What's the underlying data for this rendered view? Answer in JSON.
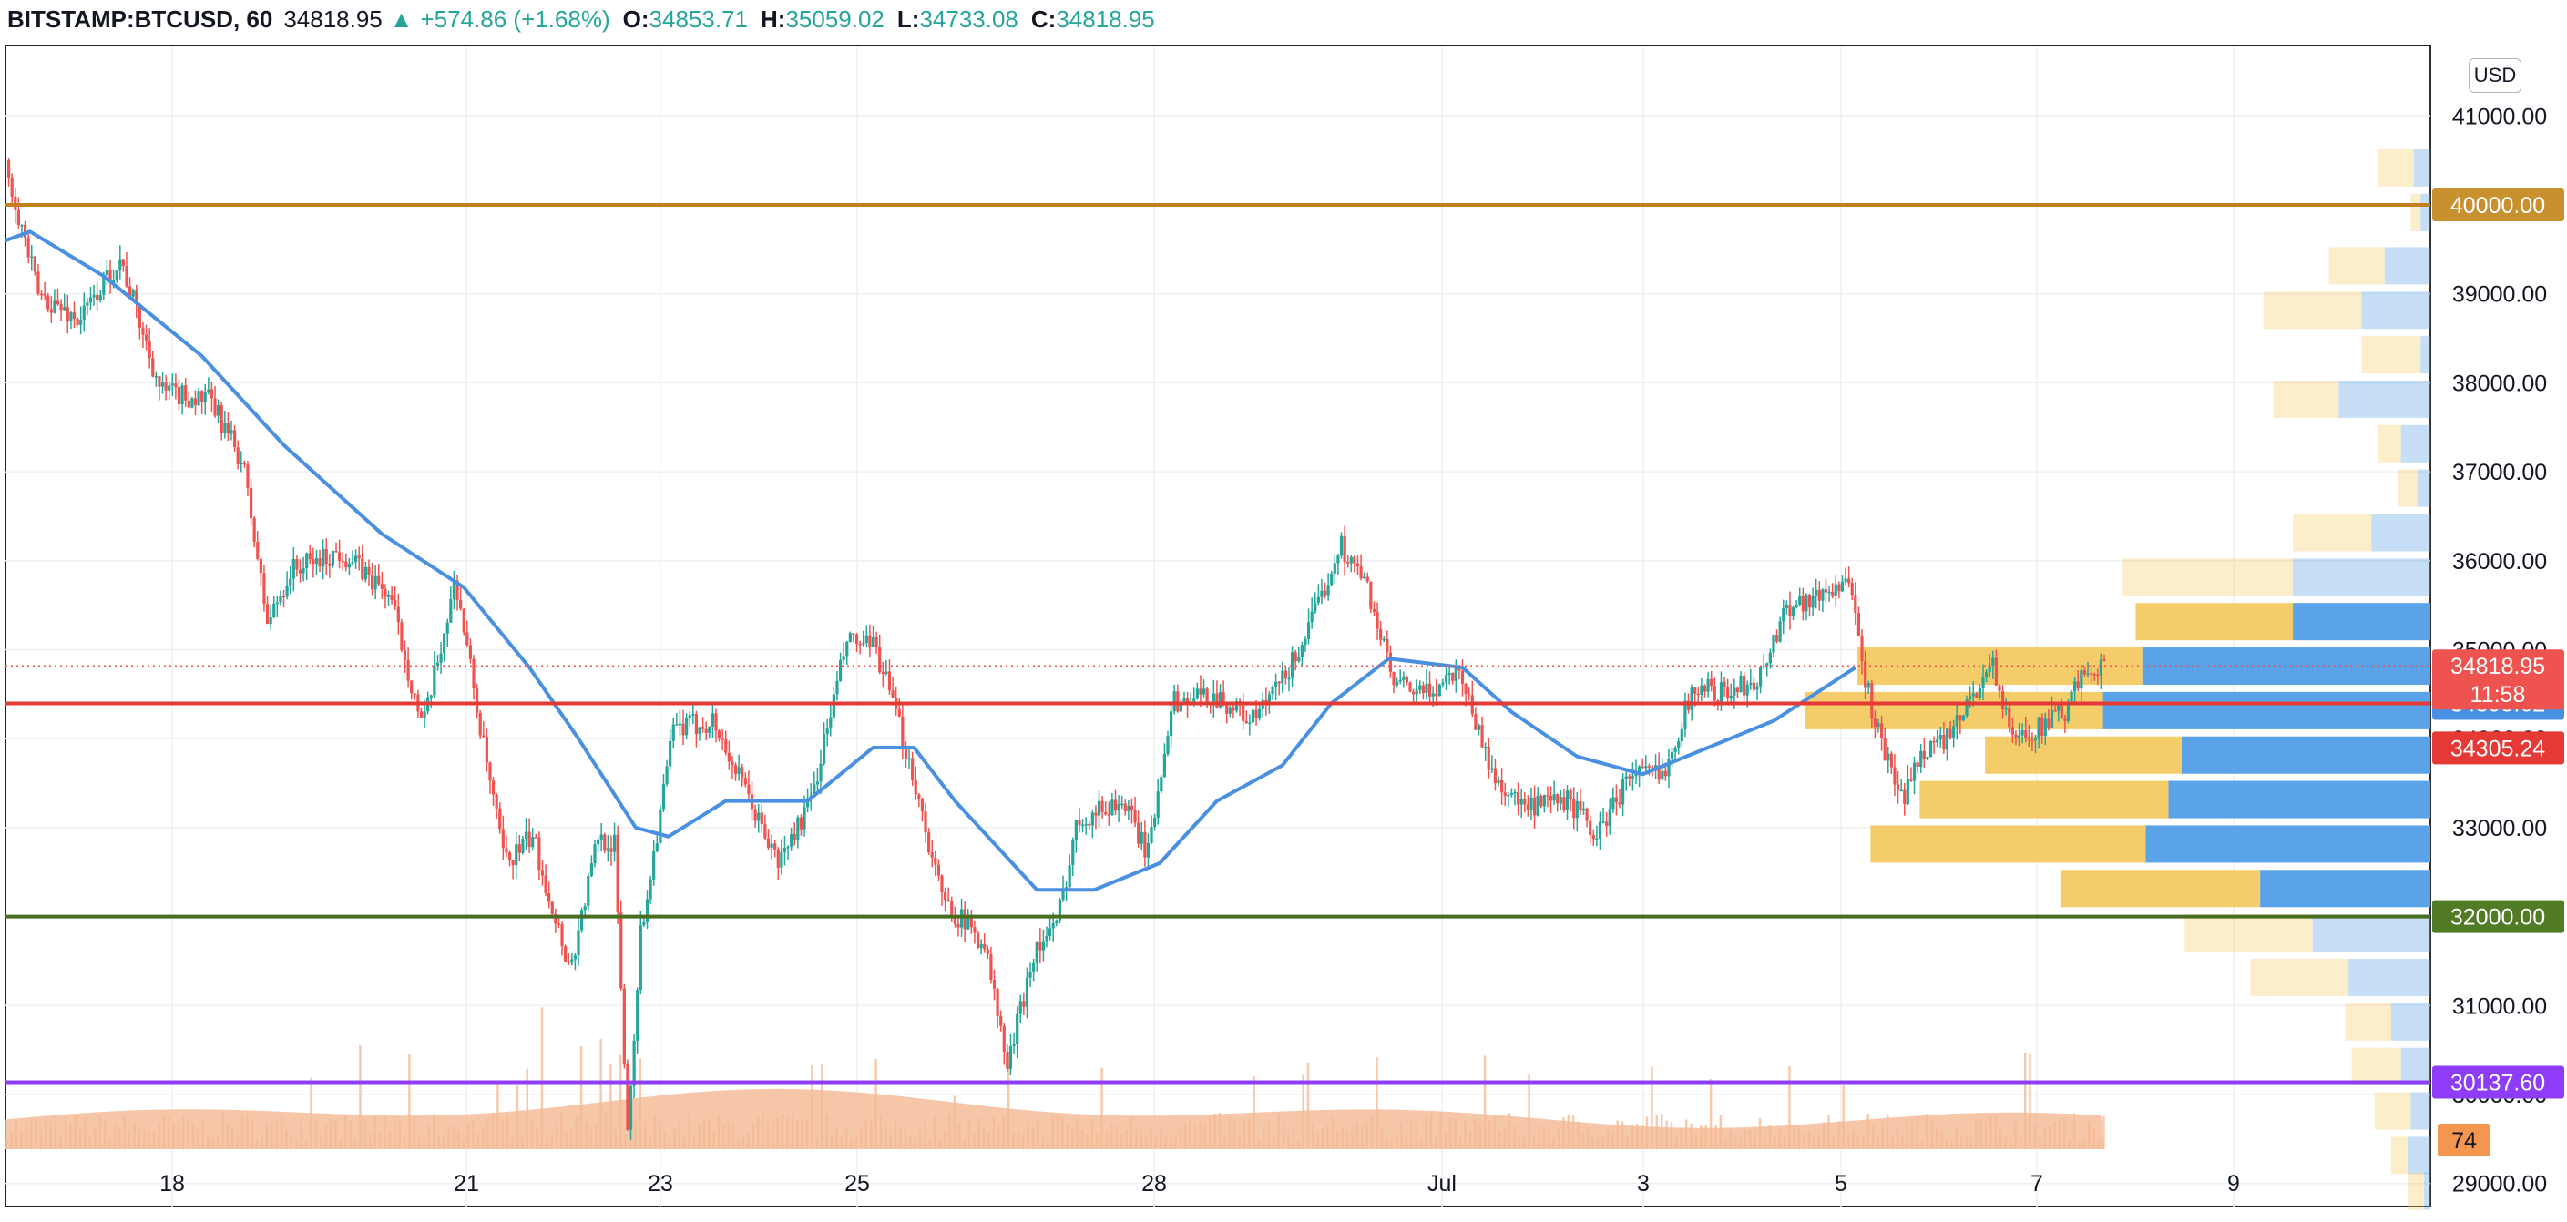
{
  "header": {
    "symbol": "BITSTAMP:BTCUSD, 60",
    "last": "34818.95",
    "change_arrow": "▲",
    "change": "+574.86 (+1.68%)",
    "o_label": "O:",
    "o": "34853.71",
    "h_label": "H:",
    "h": "35059.02",
    "l_label": "L:",
    "l": "34733.08",
    "c_label": "C:",
    "c": "34818.95"
  },
  "currency_button": "USD",
  "chart_data": {
    "type": "candlestick",
    "interval": "60",
    "y_axis": {
      "side": "right",
      "range": [
        28400,
        41900
      ],
      "ticks": [
        29000,
        30000,
        31000,
        32000,
        33000,
        34000,
        35000,
        36000,
        37000,
        38000,
        39000,
        40000,
        41000
      ],
      "tick_labels": [
        "29000.00",
        "30000.00",
        "31000.00",
        "32000.00",
        "33000.00",
        "34000.00",
        "35000.00",
        "36000.00",
        "37000.00",
        "38000.00",
        "39000.00",
        "40000.00",
        "41000.00"
      ]
    },
    "x_axis": {
      "labels": [
        "18",
        "21",
        "23",
        "25",
        "28",
        "Jul",
        "3",
        "5",
        "7",
        "9"
      ]
    },
    "grid": true,
    "price_path_keypoints": [
      [
        0,
        40500
      ],
      [
        20,
        39000
      ],
      [
        45,
        38700
      ],
      [
        70,
        39400
      ],
      [
        95,
        37900
      ],
      [
        125,
        37800
      ],
      [
        145,
        37100
      ],
      [
        160,
        35300
      ],
      [
        175,
        35900
      ],
      [
        205,
        36100
      ],
      [
        235,
        35600
      ],
      [
        255,
        34100
      ],
      [
        275,
        35800
      ],
      [
        292,
        33900
      ],
      [
        305,
        32600
      ],
      [
        322,
        32900
      ],
      [
        345,
        31400
      ],
      [
        362,
        32900
      ],
      [
        372,
        32800
      ],
      [
        380,
        29600
      ],
      [
        388,
        31800
      ],
      [
        408,
        34100
      ],
      [
        432,
        34200
      ],
      [
        452,
        33400
      ],
      [
        472,
        32600
      ],
      [
        492,
        33300
      ],
      [
        514,
        35100
      ],
      [
        532,
        35000
      ],
      [
        553,
        33700
      ],
      [
        572,
        32200
      ],
      [
        598,
        31700
      ],
      [
        612,
        30300
      ],
      [
        628,
        31600
      ],
      [
        642,
        31900
      ],
      [
        655,
        33100
      ],
      [
        682,
        33300
      ],
      [
        698,
        32700
      ],
      [
        712,
        34400
      ],
      [
        738,
        34500
      ],
      [
        762,
        34200
      ],
      [
        782,
        34700
      ],
      [
        800,
        35400
      ],
      [
        815,
        36200
      ],
      [
        832,
        35700
      ],
      [
        848,
        34600
      ],
      [
        868,
        34500
      ],
      [
        888,
        34800
      ],
      [
        908,
        33600
      ],
      [
        928,
        33200
      ],
      [
        955,
        33300
      ],
      [
        972,
        32900
      ],
      [
        992,
        33600
      ],
      [
        1012,
        33600
      ],
      [
        1032,
        34600
      ],
      [
        1052,
        34500
      ],
      [
        1072,
        34700
      ],
      [
        1088,
        35500
      ],
      [
        1108,
        35600
      ],
      [
        1125,
        35800
      ],
      [
        1140,
        34300
      ],
      [
        1158,
        33300
      ],
      [
        1172,
        33900
      ],
      [
        1188,
        34000
      ],
      [
        1202,
        34500
      ],
      [
        1213,
        34900
      ],
      [
        1225,
        34000
      ],
      [
        1240,
        34100
      ],
      [
        1258,
        34300
      ],
      [
        1272,
        34800
      ],
      [
        1282,
        34819
      ]
    ],
    "moving_average": {
      "color": "#4a90e2",
      "keypoints": [
        [
          0,
          39600
        ],
        [
          15,
          39700
        ],
        [
          60,
          39200
        ],
        [
          120,
          38300
        ],
        [
          170,
          37300
        ],
        [
          230,
          36300
        ],
        [
          280,
          35700
        ],
        [
          320,
          34800
        ],
        [
          350,
          34000
        ],
        [
          385,
          33000
        ],
        [
          405,
          32900
        ],
        [
          440,
          33300
        ],
        [
          490,
          33300
        ],
        [
          530,
          33900
        ],
        [
          555,
          33900
        ],
        [
          580,
          33300
        ],
        [
          630,
          32300
        ],
        [
          665,
          32300
        ],
        [
          705,
          32600
        ],
        [
          740,
          33300
        ],
        [
          780,
          33700
        ],
        [
          810,
          34400
        ],
        [
          845,
          34900
        ],
        [
          890,
          34800
        ],
        [
          920,
          34300
        ],
        [
          960,
          33800
        ],
        [
          1000,
          33600
        ],
        [
          1040,
          33900
        ],
        [
          1080,
          34200
        ],
        [
          1130,
          34800
        ]
      ]
    },
    "volume_profile": {
      "rows": [
        {
          "price": 40400,
          "up": 22,
          "down": 10,
          "highlight": false
        },
        {
          "price": 39900,
          "up": 6,
          "down": 6,
          "highlight": false
        },
        {
          "price": 39300,
          "up": 34,
          "down": 28,
          "highlight": false
        },
        {
          "price": 38800,
          "up": 60,
          "down": 42,
          "highlight": false
        },
        {
          "price": 38300,
          "up": 36,
          "down": 6,
          "highlight": false
        },
        {
          "price": 37800,
          "up": 40,
          "down": 56,
          "highlight": false
        },
        {
          "price": 37300,
          "up": 14,
          "down": 18,
          "highlight": false
        },
        {
          "price": 36800,
          "up": 12,
          "down": 8,
          "highlight": false
        },
        {
          "price": 36300,
          "up": 48,
          "down": 36,
          "highlight": false
        },
        {
          "price": 35800,
          "up": 104,
          "down": 84,
          "highlight": false
        },
        {
          "price": 35300,
          "up": 96,
          "down": 84,
          "highlight": true
        },
        {
          "price": 34800,
          "up": 174,
          "down": 176,
          "highlight": true
        },
        {
          "price": 34300,
          "up": 182,
          "down": 200,
          "highlight": true
        },
        {
          "price": 33800,
          "up": 120,
          "down": 152,
          "highlight": true
        },
        {
          "price": 33300,
          "up": 152,
          "down": 160,
          "highlight": true
        },
        {
          "price": 32800,
          "up": 168,
          "down": 174,
          "highlight": true
        },
        {
          "price": 32300,
          "up": 122,
          "down": 104,
          "highlight": true
        },
        {
          "price": 31800,
          "up": 78,
          "down": 72,
          "highlight": false
        },
        {
          "price": 31300,
          "up": 60,
          "down": 50,
          "highlight": false
        },
        {
          "price": 30800,
          "up": 28,
          "down": 24,
          "highlight": false
        },
        {
          "price": 30300,
          "up": 30,
          "down": 18,
          "highlight": false
        },
        {
          "price": 29800,
          "up": 22,
          "down": 12,
          "highlight": false
        },
        {
          "price": 29300,
          "up": 10,
          "down": 14,
          "highlight": false
        },
        {
          "price": 28900,
          "up": 10,
          "down": 4,
          "highlight": false
        }
      ]
    },
    "horizontal_lines": [
      {
        "price": 40000.0,
        "label": "40000.00",
        "color": "#c47f1e",
        "tag_color": "#c8902f"
      },
      {
        "price": 34395.62,
        "label": "34395.62",
        "color": "#e53935",
        "tag_color": "#4a90e2"
      },
      {
        "price": 32000.0,
        "label": "32000.00",
        "color": "#4a6e1f",
        "tag_color": "#517b25"
      },
      {
        "price": 30137.6,
        "label": "30137.60",
        "color": "#8e3cf7",
        "tag_color": "#8e3cf7"
      }
    ],
    "price_tags": [
      {
        "price": 34818.95,
        "label": "34818.95",
        "sublabel": "11:58",
        "color": "#ef5350"
      },
      {
        "price": 34305.24,
        "label": "34305.24",
        "color": "#e53935"
      }
    ],
    "volume_tag": {
      "label": "74",
      "color": "#f5964f"
    },
    "colors": {
      "up": "#26a69a",
      "down": "#ef5350",
      "grid": "#eef0f3",
      "volume": "#f4b893"
    }
  }
}
